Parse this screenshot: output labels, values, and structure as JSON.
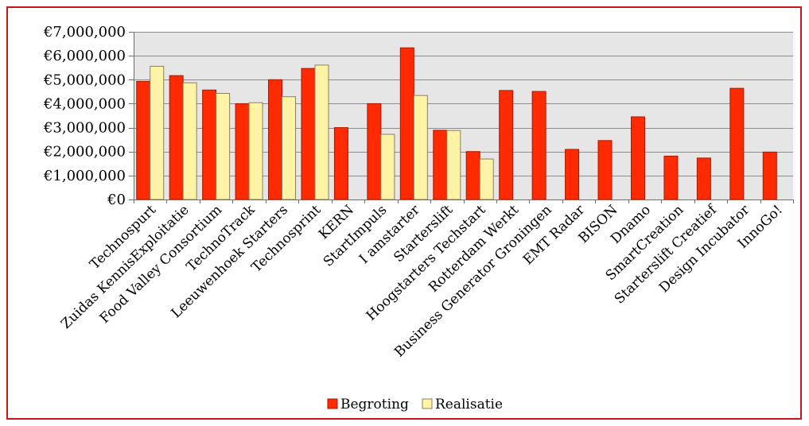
{
  "chart_data": {
    "type": "bar",
    "categories": [
      "Technospurt",
      "Zuidas KennisExploitatie",
      "Food Valley Consortium",
      "TechnoTrack",
      "Leeuwenhoek Starters",
      "Technosprint",
      "KERN",
      "StartImpuls",
      "I amstarter",
      "Starterslift",
      "Hoogstarters Techstart",
      "Rotterdam Werkt",
      "Business Generator Groningen",
      "EMT Radar",
      "BISON",
      "Dnamo",
      "SmartCreation",
      "Starterslift Creatief",
      "Design Incubator",
      "InnoGo!"
    ],
    "series": [
      {
        "name": "Begroting",
        "color": "#ff2a00",
        "edge": "#a81800",
        "values": [
          4930000,
          5170000,
          4570000,
          4000000,
          5000000,
          5470000,
          3000000,
          4000000,
          6330000,
          2890000,
          2000000,
          4550000,
          4510000,
          2090000,
          2460000,
          3450000,
          1810000,
          1730000,
          4640000,
          1980000
        ]
      },
      {
        "name": "Realisatie",
        "color": "#fff4a6",
        "edge": "#8a8160",
        "values": [
          5560000,
          4870000,
          4430000,
          4040000,
          4290000,
          5610000,
          null,
          2720000,
          4340000,
          2880000,
          1690000,
          null,
          null,
          null,
          null,
          null,
          null,
          null,
          null,
          null
        ]
      }
    ],
    "ylim": [
      0,
      7000000
    ],
    "yticks": [
      0,
      1000000,
      2000000,
      3000000,
      4000000,
      5000000,
      6000000,
      7000000
    ],
    "ytick_labels": [
      "€0",
      "€1,000,000",
      "€2,000,000",
      "€3,000,000",
      "€4,000,000",
      "€5,000,000",
      "€6,000,000",
      "€7,000,000"
    ],
    "grid": true,
    "legend": "bottom",
    "plot_background": "#e6e6e6"
  }
}
